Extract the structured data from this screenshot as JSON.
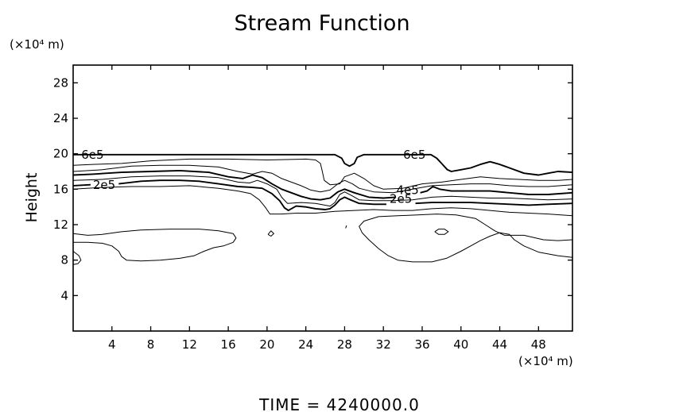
{
  "chart_data": {
    "type": "contour",
    "title": "Stream Function",
    "ylabel": "Height",
    "x_unit": "(×10⁴ m)",
    "y_unit": "(×10⁴ m)",
    "xlim": [
      0,
      51.5
    ],
    "ylim": [
      0,
      30
    ],
    "x_ticks": [
      4,
      8,
      12,
      16,
      20,
      24,
      28,
      32,
      36,
      40,
      44,
      48
    ],
    "y_ticks": [
      4,
      8,
      12,
      16,
      20,
      24,
      28
    ],
    "footer": "TIME  =  4240000.0",
    "contour_labels": [
      {
        "text": "6e5",
        "x": 2.0,
        "y": 19.9
      },
      {
        "text": "6e5",
        "x": 35.2,
        "y": 19.9
      },
      {
        "text": "2e5",
        "x": 3.2,
        "y": 16.5
      },
      {
        "text": "4e5",
        "x": 34.5,
        "y": 15.9
      },
      {
        "text": "2e5",
        "x": 33.8,
        "y": 14.9
      }
    ],
    "contours": [
      {
        "level": "6e5",
        "bold": true,
        "points": [
          [
            0,
            19.9
          ],
          [
            1.5,
            19.9
          ],
          [
            2,
            19.9
          ],
          [
            2.6,
            19.9
          ],
          [
            6,
            19.9
          ],
          [
            12,
            19.9
          ],
          [
            20,
            19.9
          ],
          [
            27,
            19.9
          ],
          [
            27.7,
            19.5
          ],
          [
            28,
            18.9
          ],
          [
            28.5,
            18.6
          ],
          [
            29,
            18.9
          ],
          [
            29.3,
            19.6
          ],
          [
            30,
            19.9
          ],
          [
            32.5,
            19.9
          ],
          [
            33.4,
            19.9
          ],
          [
            34.8,
            19.9
          ],
          [
            36.9,
            19.9
          ],
          [
            37.5,
            19.5
          ],
          [
            38,
            18.9
          ],
          [
            38.6,
            18.2
          ],
          [
            39,
            18.0
          ],
          [
            40,
            18.2
          ],
          [
            41,
            18.4
          ],
          [
            42,
            18.8
          ],
          [
            43,
            19.1
          ],
          [
            44,
            18.8
          ],
          [
            45,
            18.4
          ],
          [
            46.5,
            17.8
          ],
          [
            48,
            17.6
          ],
          [
            49,
            17.8
          ],
          [
            50,
            18.0
          ],
          [
            51.5,
            17.9
          ]
        ]
      },
      {
        "level": "",
        "bold": false,
        "points": [
          [
            0,
            18.7
          ],
          [
            2,
            18.8
          ],
          [
            5,
            18.9
          ],
          [
            8,
            19.2
          ],
          [
            12,
            19.4
          ],
          [
            16,
            19.4
          ],
          [
            20,
            19.3
          ],
          [
            24,
            19.4
          ],
          [
            25,
            19.3
          ],
          [
            25.5,
            18.9
          ],
          [
            25.7,
            18.0
          ],
          [
            25.9,
            17.0
          ],
          [
            26.5,
            16.5
          ],
          [
            27.5,
            16.6
          ],
          [
            28,
            17.4
          ],
          [
            29,
            17.8
          ],
          [
            30,
            17.2
          ],
          [
            31,
            16.4
          ],
          [
            32,
            16.0
          ],
          [
            34,
            16.1
          ],
          [
            36,
            16.6
          ],
          [
            38,
            16.8
          ],
          [
            40,
            17.1
          ],
          [
            42,
            17.4
          ],
          [
            44,
            17.2
          ],
          [
            46,
            17.1
          ],
          [
            48,
            17.0
          ],
          [
            50,
            17.0
          ],
          [
            51.5,
            17.1
          ]
        ]
      },
      {
        "level": "",
        "bold": false,
        "points": [
          [
            0,
            18.0
          ],
          [
            3,
            18.2
          ],
          [
            6,
            18.6
          ],
          [
            9,
            18.7
          ],
          [
            12,
            18.7
          ],
          [
            15,
            18.5
          ],
          [
            17,
            18.0
          ],
          [
            18.5,
            17.7
          ],
          [
            19.5,
            18.0
          ],
          [
            20.5,
            17.8
          ],
          [
            21.5,
            17.2
          ],
          [
            22.5,
            16.8
          ],
          [
            23.5,
            16.4
          ],
          [
            24.5,
            15.9
          ],
          [
            25.5,
            15.7
          ],
          [
            26.5,
            15.9
          ],
          [
            27.3,
            16.6
          ],
          [
            28,
            17.0
          ],
          [
            28.8,
            16.6
          ],
          [
            29.5,
            16.1
          ],
          [
            31,
            15.7
          ],
          [
            33,
            15.6
          ],
          [
            35,
            16.0
          ],
          [
            37,
            16.4
          ],
          [
            39,
            16.5
          ],
          [
            41,
            16.6
          ],
          [
            43,
            16.6
          ],
          [
            45,
            16.4
          ],
          [
            47,
            16.3
          ],
          [
            49,
            16.3
          ],
          [
            51.5,
            16.5
          ]
        ]
      },
      {
        "level": "4e5",
        "bold": true,
        "points": [
          [
            0,
            17.6
          ],
          [
            2,
            17.7
          ],
          [
            5,
            17.9
          ],
          [
            8,
            18.0
          ],
          [
            11,
            18.1
          ],
          [
            14,
            17.9
          ],
          [
            16,
            17.4
          ],
          [
            17.5,
            17.2
          ],
          [
            18.5,
            17.6
          ],
          [
            19.5,
            17.3
          ],
          [
            20.5,
            16.6
          ],
          [
            21.5,
            16.0
          ],
          [
            22.5,
            15.6
          ],
          [
            23.5,
            15.2
          ],
          [
            24.5,
            14.9
          ],
          [
            25.5,
            14.8
          ],
          [
            26.5,
            15.0
          ],
          [
            27.3,
            15.7
          ],
          [
            28,
            16.0
          ],
          [
            29,
            15.6
          ],
          [
            30.5,
            15.1
          ],
          [
            32,
            15.0
          ],
          [
            33.3,
            15.1
          ]
        ]
      },
      {
        "level": "4e5",
        "bold": true,
        "points": [
          [
            35.8,
            15.6
          ],
          [
            36.5,
            15.8
          ],
          [
            37.1,
            16.3
          ],
          [
            37.8,
            16.0
          ],
          [
            39,
            15.8
          ],
          [
            41,
            15.8
          ],
          [
            43,
            15.8
          ],
          [
            45,
            15.6
          ],
          [
            47,
            15.4
          ],
          [
            49,
            15.4
          ],
          [
            51.5,
            15.6
          ]
        ]
      },
      {
        "level": "",
        "bold": false,
        "points": [
          [
            0,
            17.0
          ],
          [
            3,
            17.1
          ],
          [
            6,
            17.4
          ],
          [
            9,
            17.5
          ],
          [
            12,
            17.5
          ],
          [
            15,
            17.3
          ],
          [
            17,
            16.8
          ],
          [
            18.2,
            16.7
          ],
          [
            19,
            17.0
          ],
          [
            20,
            16.6
          ],
          [
            21,
            16.0
          ],
          [
            21.5,
            15.1
          ],
          [
            22.1,
            14.4
          ],
          [
            23.5,
            14.5
          ],
          [
            25,
            14.4
          ],
          [
            26.5,
            14.1
          ],
          [
            27,
            14.5
          ],
          [
            27.5,
            15.4
          ],
          [
            28,
            15.7
          ],
          [
            28.7,
            15.3
          ],
          [
            29.5,
            14.8
          ],
          [
            31,
            14.7
          ],
          [
            33,
            14.7
          ],
          [
            35,
            14.8
          ],
          [
            37,
            15.1
          ],
          [
            39,
            15.2
          ],
          [
            41,
            15.1
          ],
          [
            43,
            15.0
          ],
          [
            45,
            15.0
          ],
          [
            47,
            14.9
          ],
          [
            49,
            14.8
          ],
          [
            51.5,
            14.9
          ]
        ]
      },
      {
        "level": "2e5",
        "bold": true,
        "points": [
          [
            0,
            16.4
          ],
          [
            1.8,
            16.5
          ]
        ]
      },
      {
        "level": "2e5",
        "bold": true,
        "points": [
          [
            4.7,
            16.6
          ],
          [
            7,
            16.9
          ],
          [
            9,
            17.0
          ],
          [
            11,
            17.0
          ],
          [
            13,
            16.9
          ],
          [
            15,
            16.6
          ],
          [
            17,
            16.3
          ],
          [
            18.5,
            16.2
          ],
          [
            19.5,
            16.1
          ],
          [
            20.5,
            15.5
          ],
          [
            21.3,
            14.7
          ],
          [
            21.8,
            13.9
          ],
          [
            22.2,
            13.6
          ],
          [
            23,
            14.1
          ],
          [
            24,
            14.0
          ],
          [
            25,
            13.8
          ],
          [
            26,
            13.7
          ],
          [
            26.5,
            13.8
          ],
          [
            27,
            14.2
          ],
          [
            27.5,
            14.8
          ],
          [
            28,
            15.1
          ],
          [
            28.6,
            14.8
          ],
          [
            29.5,
            14.4
          ],
          [
            31,
            14.3
          ],
          [
            32.3,
            14.3
          ]
        ]
      },
      {
        "level": "2e5",
        "bold": true,
        "points": [
          [
            35.3,
            14.4
          ],
          [
            37,
            14.5
          ],
          [
            39,
            14.5
          ],
          [
            41,
            14.5
          ],
          [
            43,
            14.4
          ],
          [
            45,
            14.3
          ],
          [
            47,
            14.2
          ],
          [
            49,
            14.3
          ],
          [
            51.5,
            14.4
          ]
        ]
      },
      {
        "level": "",
        "bold": false,
        "points": [
          [
            0,
            16.0
          ],
          [
            3,
            16.2
          ],
          [
            6,
            16.3
          ],
          [
            9,
            16.3
          ],
          [
            12,
            16.4
          ],
          [
            15,
            16.1
          ],
          [
            17,
            15.8
          ],
          [
            18.3,
            15.5
          ],
          [
            19.2,
            14.8
          ],
          [
            19.8,
            14.0
          ],
          [
            20.3,
            13.2
          ],
          [
            21.5,
            13.2
          ],
          [
            23,
            13.3
          ],
          [
            25,
            13.3
          ],
          [
            27,
            13.5
          ],
          [
            29,
            13.6
          ],
          [
            31,
            13.7
          ],
          [
            33,
            13.6
          ],
          [
            35,
            13.6
          ],
          [
            37,
            13.8
          ],
          [
            39,
            13.9
          ],
          [
            41,
            13.8
          ],
          [
            43,
            13.6
          ],
          [
            45,
            13.4
          ],
          [
            47,
            13.3
          ],
          [
            49,
            13.2
          ],
          [
            51.5,
            13.0
          ]
        ]
      },
      {
        "level": "",
        "bold": false,
        "points": [
          [
            0,
            11.0
          ],
          [
            1.5,
            10.8
          ],
          [
            3,
            10.9
          ],
          [
            5,
            11.2
          ],
          [
            7,
            11.4
          ],
          [
            10,
            11.5
          ],
          [
            13,
            11.5
          ],
          [
            15,
            11.3
          ],
          [
            16.5,
            11.0
          ],
          [
            16.8,
            10.5
          ],
          [
            16.5,
            10.0
          ],
          [
            15.5,
            9.6
          ],
          [
            14.5,
            9.4
          ],
          [
            13.5,
            9.0
          ],
          [
            12.5,
            8.5
          ],
          [
            11,
            8.2
          ],
          [
            9,
            8.0
          ],
          [
            7,
            7.9
          ],
          [
            5.5,
            8.0
          ],
          [
            5,
            8.4
          ],
          [
            4.7,
            9.0
          ],
          [
            4,
            9.6
          ],
          [
            3,
            9.9
          ],
          [
            1.5,
            10.0
          ],
          [
            0,
            10.0
          ]
        ]
      },
      {
        "level": "",
        "bold": false,
        "points": [
          [
            0,
            9.0
          ],
          [
            0.6,
            8.5
          ],
          [
            0.8,
            8.0
          ],
          [
            0.5,
            7.6
          ],
          [
            0,
            7.5
          ]
        ]
      },
      {
        "level": "",
        "bold": false,
        "points": [
          [
            51.5,
            8.3
          ],
          [
            50,
            8.5
          ],
          [
            48,
            8.9
          ],
          [
            46.5,
            9.6
          ],
          [
            45.5,
            10.3
          ],
          [
            45,
            10.9
          ],
          [
            44,
            11.1
          ],
          [
            43,
            10.7
          ],
          [
            42,
            10.2
          ],
          [
            41,
            9.6
          ],
          [
            40,
            9.0
          ],
          [
            38.5,
            8.2
          ],
          [
            37,
            7.8
          ],
          [
            35,
            7.8
          ],
          [
            33.5,
            8.0
          ],
          [
            32.5,
            8.5
          ],
          [
            31.5,
            9.3
          ],
          [
            30.5,
            10.3
          ],
          [
            29.8,
            11.1
          ],
          [
            29.5,
            11.8
          ],
          [
            30,
            12.4
          ],
          [
            31.5,
            12.9
          ],
          [
            33.5,
            13.0
          ],
          [
            35.5,
            13.1
          ],
          [
            37.5,
            13.2
          ],
          [
            39.5,
            13.1
          ],
          [
            41.5,
            12.7
          ],
          [
            42.5,
            12.0
          ],
          [
            43.5,
            11.3
          ],
          [
            44.5,
            10.8
          ],
          [
            46.5,
            10.8
          ],
          [
            48.5,
            10.3
          ],
          [
            50,
            10.2
          ],
          [
            51.5,
            10.3
          ]
        ]
      },
      {
        "level": "",
        "bold": false,
        "points": [
          [
            20.1,
            10.9
          ],
          [
            20.4,
            11.3
          ],
          [
            20.7,
            11.0
          ],
          [
            20.4,
            10.7
          ],
          [
            20.1,
            10.9
          ]
        ]
      },
      {
        "level": "",
        "bold": false,
        "points": [
          [
            37.3,
            11.2
          ],
          [
            37.7,
            11.5
          ],
          [
            38.3,
            11.5
          ],
          [
            38.7,
            11.2
          ],
          [
            38.3,
            10.9
          ],
          [
            37.7,
            10.9
          ],
          [
            37.3,
            11.2
          ]
        ]
      },
      {
        "level": "",
        "bold": false,
        "points": [
          [
            28.1,
            11.6
          ],
          [
            28.2,
            11.9
          ]
        ]
      }
    ]
  }
}
